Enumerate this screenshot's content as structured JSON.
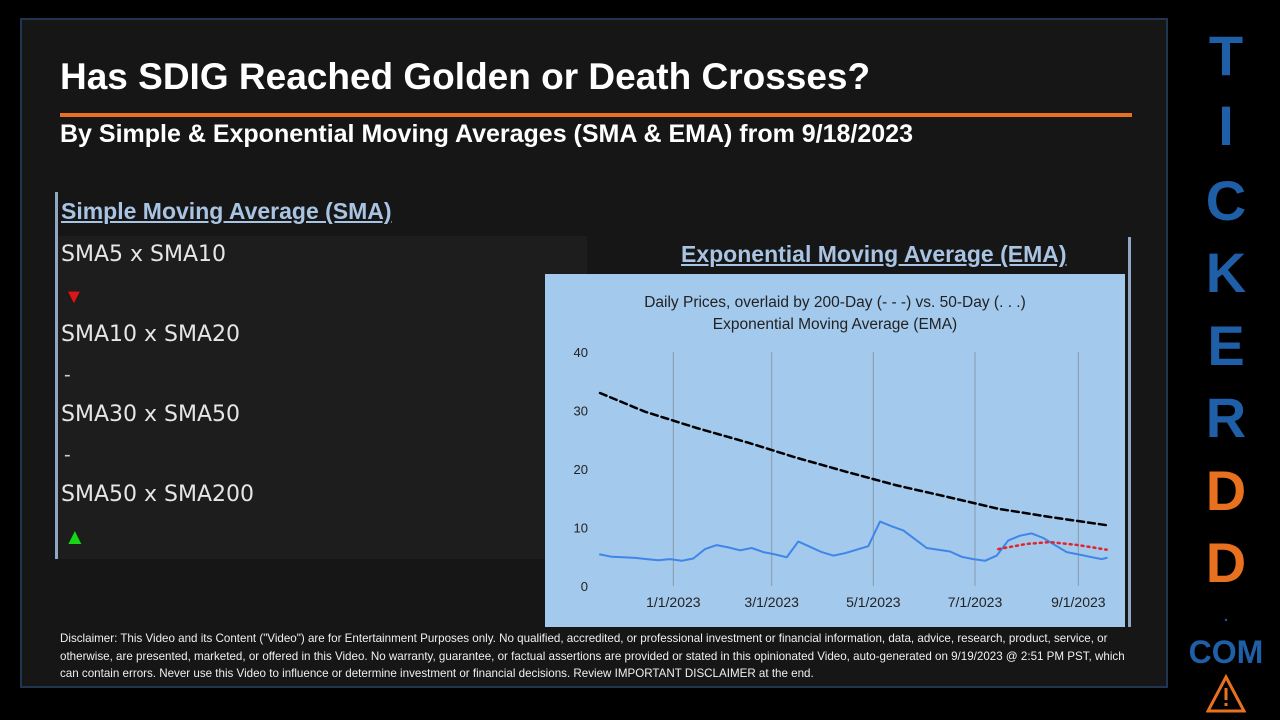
{
  "title": "Has SDIG Reached Golden or Death Crosses?",
  "subtitle": "By Simple & Exponential Moving Averages (SMA & EMA) from 9/18/2023",
  "sma": {
    "heading": "Simple Moving Average (SMA)",
    "rows": [
      {
        "label": "SMA5 x SMA10",
        "signal": "▼",
        "kind": "down"
      },
      {
        "label": "SMA10 x SMA20",
        "signal": "-",
        "kind": "none"
      },
      {
        "label": "SMA30 x SMA50",
        "signal": "-",
        "kind": "none"
      },
      {
        "label": "SMA50 x SMA200",
        "signal": "▲",
        "kind": "up"
      }
    ]
  },
  "ema": {
    "heading": "Exponential Moving Average (EMA)"
  },
  "chart_data": {
    "type": "line",
    "title": "Daily Prices, overlaid by 200-Day (- - -) vs. 50-Day (. . .) Exponential Moving Average (EMA)",
    "title_lines": [
      "Daily Prices, overlaid by 200-Day (- - -) vs. 50-Day (. . .)",
      "Exponential Moving Average (EMA)"
    ],
    "xlabel": "",
    "ylabel": "",
    "ylim": [
      0,
      40
    ],
    "yticks": [
      0,
      10,
      20,
      30,
      40
    ],
    "xlim": [
      "2022-11-15",
      "2023-09-20"
    ],
    "xticks": [
      "2023-01-01",
      "2023-03-01",
      "2023-05-01",
      "2023-07-01",
      "2023-09-01"
    ],
    "xtick_labels": [
      "1/1/2023",
      "3/1/2023",
      "5/1/2023",
      "7/1/2023",
      "9/1/2023"
    ],
    "grid": "vertical",
    "legend": "none",
    "colors": {
      "background": "#a3c9ed",
      "price": "#3f86e8",
      "ema200": "#000000",
      "ema50": "#e0262c",
      "grid": "#8a9aab"
    },
    "series": [
      {
        "style": "solid",
        "points": [
          [
            "2022-11-18",
            5.4
          ],
          [
            "2022-11-25",
            5.0
          ],
          [
            "2022-12-02",
            4.9
          ],
          [
            "2022-12-09",
            4.8
          ],
          [
            "2022-12-16",
            4.6
          ],
          [
            "2022-12-23",
            4.4
          ],
          [
            "2022-12-30",
            4.6
          ],
          [
            "2023-01-06",
            4.3
          ],
          [
            "2023-01-13",
            4.7
          ],
          [
            "2023-01-20",
            6.3
          ],
          [
            "2023-01-27",
            7.0
          ],
          [
            "2023-02-03",
            6.6
          ],
          [
            "2023-02-10",
            6.1
          ],
          [
            "2023-02-17",
            6.5
          ],
          [
            "2023-02-24",
            5.8
          ],
          [
            "2023-03-03",
            5.4
          ],
          [
            "2023-03-10",
            4.9
          ],
          [
            "2023-03-17",
            7.6
          ],
          [
            "2023-03-24",
            6.7
          ],
          [
            "2023-03-31",
            5.8
          ],
          [
            "2023-04-07",
            5.2
          ],
          [
            "2023-04-14",
            5.6
          ],
          [
            "2023-04-21",
            6.2
          ],
          [
            "2023-04-28",
            6.8
          ],
          [
            "2023-05-05",
            11.0
          ],
          [
            "2023-05-12",
            10.2
          ],
          [
            "2023-05-19",
            9.5
          ],
          [
            "2023-05-26",
            8.0
          ],
          [
            "2023-06-02",
            6.5
          ],
          [
            "2023-06-09",
            6.2
          ],
          [
            "2023-06-16",
            5.9
          ],
          [
            "2023-06-23",
            5.0
          ],
          [
            "2023-06-30",
            4.6
          ],
          [
            "2023-07-07",
            4.3
          ],
          [
            "2023-07-14",
            5.2
          ],
          [
            "2023-07-21",
            7.8
          ],
          [
            "2023-07-28",
            8.6
          ],
          [
            "2023-08-04",
            9.0
          ],
          [
            "2023-08-11",
            8.2
          ],
          [
            "2023-08-18",
            7.0
          ],
          [
            "2023-08-25",
            5.8
          ],
          [
            "2023-09-01",
            5.4
          ],
          [
            "2023-09-08",
            5.0
          ],
          [
            "2023-09-15",
            4.6
          ],
          [
            "2023-09-18",
            4.8
          ]
        ]
      },
      {
        "style": "dashed",
        "points": [
          [
            "2022-11-18",
            33.0
          ],
          [
            "2022-12-15",
            29.8
          ],
          [
            "2023-01-15",
            27.0
          ],
          [
            "2023-02-15",
            24.5
          ],
          [
            "2023-03-15",
            22.0
          ],
          [
            "2023-04-15",
            19.5
          ],
          [
            "2023-05-15",
            17.2
          ],
          [
            "2023-06-15",
            15.2
          ],
          [
            "2023-07-15",
            13.2
          ],
          [
            "2023-08-15",
            11.8
          ],
          [
            "2023-09-18",
            10.4
          ]
        ]
      },
      {
        "style": "dotted",
        "points": [
          [
            "2023-07-15",
            6.3
          ],
          [
            "2023-08-01",
            7.2
          ],
          [
            "2023-08-15",
            7.5
          ],
          [
            "2023-09-01",
            7.0
          ],
          [
            "2023-09-18",
            6.2
          ]
        ]
      }
    ]
  },
  "disclaimer": "Disclaimer: This Video and its Content (\"Video\") are for Entertainment Purposes only. No qualified, accredited, or professional investment or financial information, data, advice, research, product, service, or otherwise, are presented, marketed, or offered in this Video. No warranty, guarantee, or factual assertions are provided or stated in this opinionated Video, auto-generated on 9/19/2023 @ 2:51 PM PST, which can contain errors. Never use this Video to influence or determine investment or financial decisions. Review IMPORTANT DISCLAIMER at the end.",
  "brand": {
    "letters": [
      {
        "char": "T",
        "color": "#1f5fa8"
      },
      {
        "char": "I",
        "color": "#1f5fa8"
      },
      {
        "char": "C",
        "color": "#1f5fa8"
      },
      {
        "char": "K",
        "color": "#1f5fa8"
      },
      {
        "char": "E",
        "color": "#1f5fa8"
      },
      {
        "char": "R",
        "color": "#1f5fa8"
      },
      {
        "char": "D",
        "color": "#e8711f"
      },
      {
        "char": "D",
        "color": "#e8711f"
      }
    ],
    "dot": ".",
    "com": "COM",
    "icon": "warning-triangle-icon"
  }
}
